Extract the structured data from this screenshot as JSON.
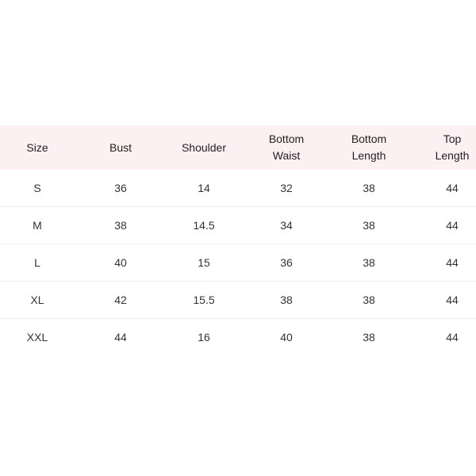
{
  "table": {
    "headers": [
      "Size",
      "Bust",
      "Shoulder",
      "Bottom\nWaist",
      "Bottom\nLength",
      "Top\nLength"
    ],
    "rows": [
      [
        "S",
        "36",
        "14",
        "32",
        "38",
        "44"
      ],
      [
        "M",
        "38",
        "14.5",
        "34",
        "38",
        "44"
      ],
      [
        "L",
        "40",
        "15",
        "36",
        "38",
        "44"
      ],
      [
        "XL",
        "42",
        "15.5",
        "38",
        "38",
        "44"
      ],
      [
        "XXL",
        "44",
        "16",
        "40",
        "38",
        "44"
      ]
    ]
  },
  "colors": {
    "header_bg": "#fdf0f3",
    "text": "#333333"
  }
}
